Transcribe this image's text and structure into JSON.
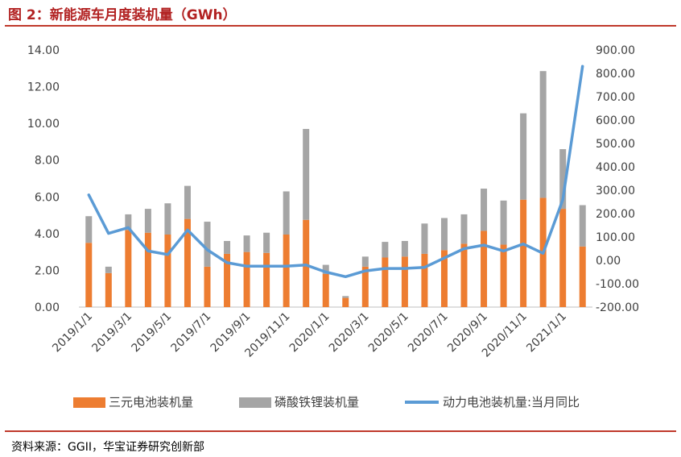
{
  "figure_title": "图 2：新能源车月度装机量（GWh）",
  "source_text": "资料来源：GGII，华宝证券研究创新部",
  "colors": {
    "sanyuan": "#ED7D31",
    "lfp": "#A5A5A5",
    "yoy": "#5B9BD5",
    "rule": "#C0392B"
  },
  "chart_data": {
    "type": "bar",
    "stacked": true,
    "title": "",
    "xlabel": "",
    "ylabel": "",
    "ylim": [
      0,
      14
    ],
    "y_ticks": [
      "0.00",
      "2.00",
      "4.00",
      "6.00",
      "8.00",
      "10.00",
      "12.00",
      "14.00"
    ],
    "y2lim": [
      -200,
      900
    ],
    "y2_ticks": [
      "-200.00",
      "-100.00",
      "0.00",
      "100.00",
      "200.00",
      "300.00",
      "400.00",
      "500.00",
      "600.00",
      "700.00",
      "800.00",
      "900.00"
    ],
    "x_tick_labels": [
      "2019/1/1",
      "2019/3/1",
      "2019/5/1",
      "2019/7/1",
      "2019/9/1",
      "2019/11/1",
      "2020/1/1",
      "2020/3/1",
      "2020/5/1",
      "2020/7/1",
      "2020/9/1",
      "2020/11/1",
      "2021/1/1"
    ],
    "categories": [
      "2019/1",
      "2019/2",
      "2019/3",
      "2019/4",
      "2019/5",
      "2019/6",
      "2019/7",
      "2019/8",
      "2019/9",
      "2019/10",
      "2019/11",
      "2019/12",
      "2020/1",
      "2020/2",
      "2020/3",
      "2020/4",
      "2020/5",
      "2020/6",
      "2020/7",
      "2020/8",
      "2020/9",
      "2020/10",
      "2020/11",
      "2020/12",
      "2021/1",
      "2021/2"
    ],
    "series": [
      {
        "name": "三元电池装机量",
        "kind": "bar",
        "axis": "left",
        "values": [
          3.5,
          1.85,
          4.2,
          4.05,
          3.95,
          4.8,
          2.2,
          2.9,
          3.0,
          2.95,
          3.95,
          4.75,
          1.8,
          0.5,
          2.2,
          2.7,
          2.75,
          2.9,
          3.1,
          3.45,
          4.15,
          3.4,
          5.85,
          5.95,
          5.35,
          3.3
        ]
      },
      {
        "name": "磷酸铁锂装机量",
        "kind": "bar",
        "axis": "left",
        "values": [
          1.45,
          0.35,
          0.85,
          1.3,
          1.7,
          1.8,
          2.45,
          0.7,
          0.9,
          1.1,
          2.35,
          4.95,
          0.5,
          0.1,
          0.55,
          0.85,
          0.85,
          1.65,
          1.75,
          1.6,
          2.3,
          2.4,
          4.7,
          6.9,
          3.25,
          2.25
        ]
      },
      {
        "name": "动力电池装机量:当月同比",
        "kind": "line",
        "axis": "right",
        "values": [
          280,
          115,
          140,
          40,
          25,
          130,
          45,
          -10,
          -25,
          -25,
          -25,
          -20,
          -50,
          -70,
          -45,
          -35,
          -35,
          -30,
          10,
          50,
          65,
          40,
          70,
          30,
          260,
          830
        ]
      }
    ],
    "legend_position": "bottom",
    "grid": false
  }
}
